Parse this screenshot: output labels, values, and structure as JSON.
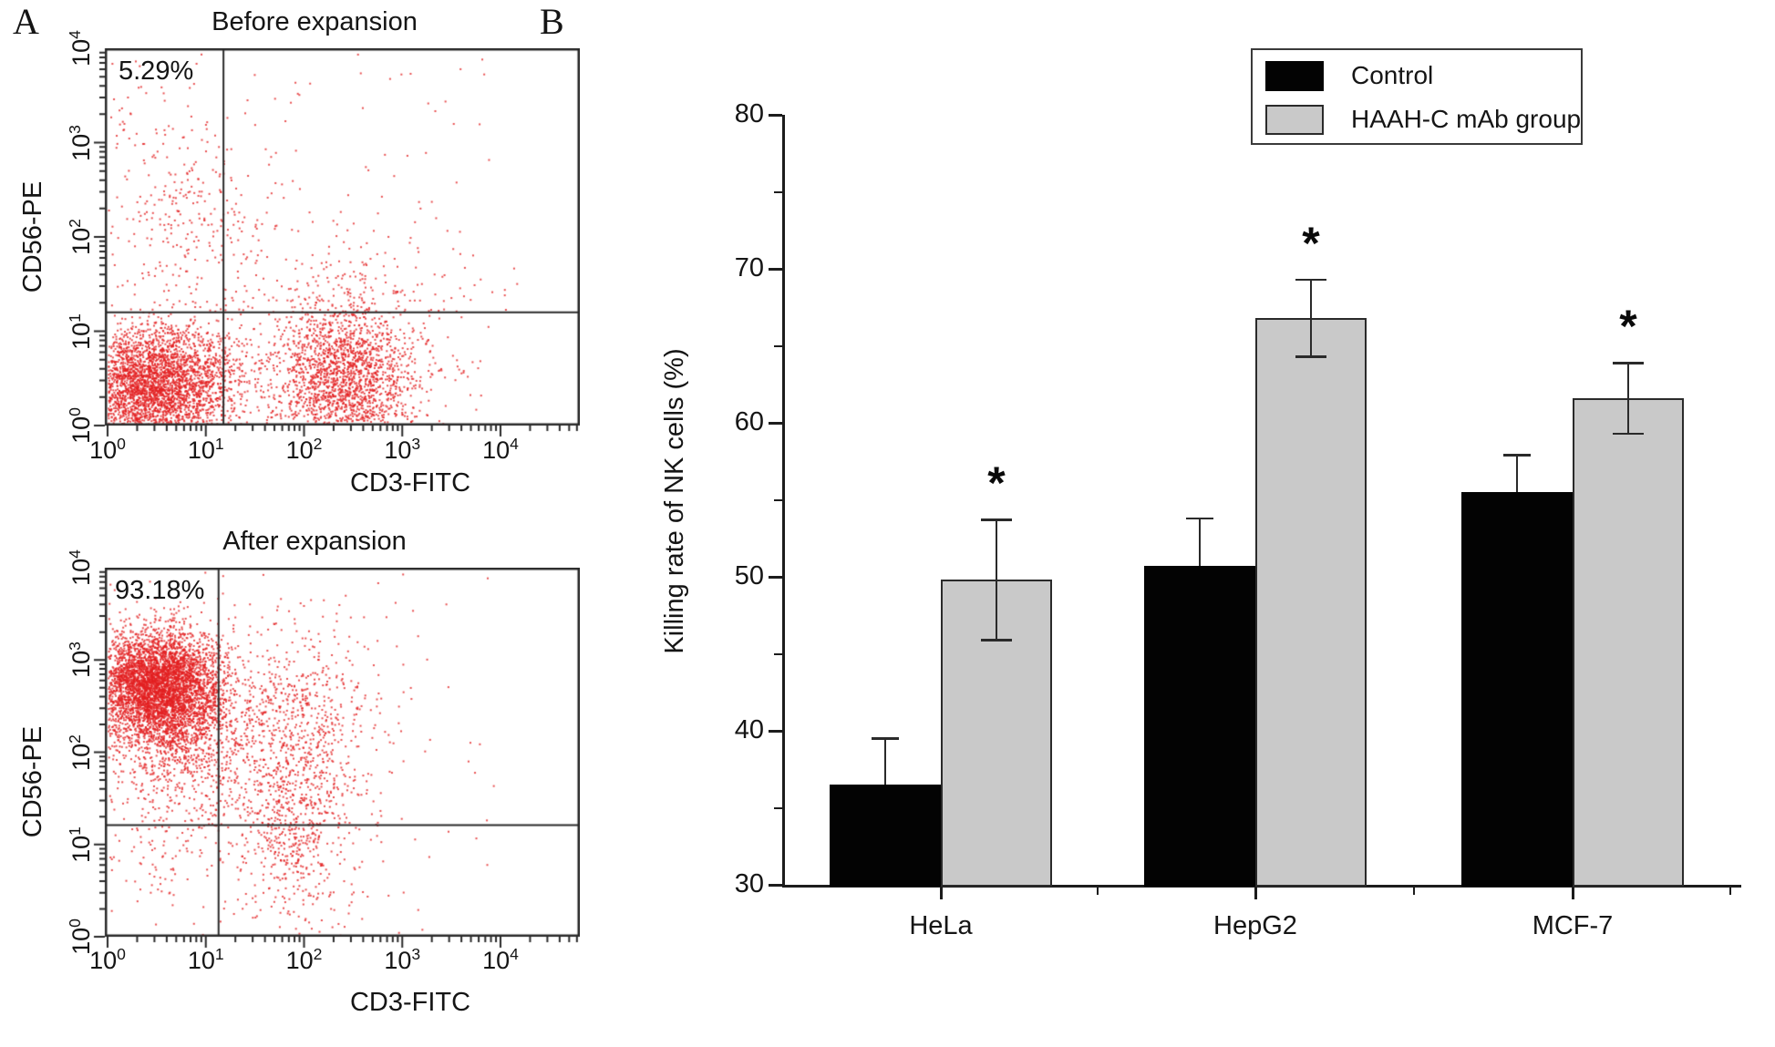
{
  "panels": {
    "a": "A",
    "b": "B"
  },
  "chart_data": [
    {
      "type": "scatter",
      "id": "before",
      "title": "Before expansion",
      "xlabel": "CD3-FITC",
      "ylabel": "CD56-PE",
      "xscale": "log",
      "yscale": "log",
      "xlim": [
        1,
        10000
      ],
      "ylim": [
        1,
        10000
      ],
      "tick_base": "10",
      "tick_exponents": [
        0,
        1,
        2,
        3,
        4
      ],
      "annotation": "5.29%",
      "gate": {
        "x": 15,
        "y": 16,
        "x_log": 1.18,
        "y_log": 1.2
      },
      "point_color": "#e32021",
      "seed": 42,
      "clusters": [
        {
          "cx": 0.42,
          "cy": 0.42,
          "sx": 0.33,
          "sy": 0.3,
          "n": 2800
        },
        {
          "cx": 1.0,
          "cy": 0.5,
          "sx": 0.3,
          "sy": 0.32,
          "n": 550
        },
        {
          "cx": 2.42,
          "cy": 0.5,
          "sx": 0.35,
          "sy": 0.38,
          "n": 1700
        },
        {
          "cx": 2.45,
          "cy": 0.8,
          "sx": 0.55,
          "sy": 0.5,
          "n": 300
        },
        {
          "cx": 0.85,
          "cy": 2.15,
          "sx": 0.45,
          "sy": 0.55,
          "n": 270
        },
        {
          "cx": 0.2,
          "cy": 3.3,
          "sx": 0.28,
          "sy": 0.35,
          "n": 35
        },
        {
          "cx": 2.6,
          "cy": 1.45,
          "sx": 0.65,
          "sy": 0.4,
          "n": 130
        },
        {
          "uniform": true,
          "n": 140
        }
      ]
    },
    {
      "type": "scatter",
      "id": "after",
      "title": "After expansion",
      "xlabel": "CD3-FITC",
      "ylabel": "CD56-PE",
      "xscale": "log",
      "yscale": "log",
      "xlim": [
        1,
        10000
      ],
      "ylim": [
        1,
        10000
      ],
      "tick_base": "10",
      "tick_exponents": [
        0,
        1,
        2,
        3,
        4
      ],
      "annotation": "93.18%",
      "gate": {
        "x": 13,
        "y": 16,
        "x_log": 1.13,
        "y_log": 1.21
      },
      "point_color": "#e32021",
      "seed": 1337,
      "clusters": [
        {
          "cx": 0.52,
          "cy": 2.72,
          "sx": 0.32,
          "sy": 0.3,
          "n": 4500
        },
        {
          "cx": 0.78,
          "cy": 2.25,
          "sx": 0.4,
          "sy": 0.4,
          "n": 800
        },
        {
          "cx": 0.85,
          "cy": 1.7,
          "sx": 0.45,
          "sy": 0.42,
          "n": 260
        },
        {
          "cx": 1.9,
          "cy": 1.3,
          "sx": 0.3,
          "sy": 0.6,
          "n": 700
        },
        {
          "cx": 1.95,
          "cy": 2.4,
          "sx": 0.35,
          "sy": 0.5,
          "n": 400
        },
        {
          "cx": 0.7,
          "cy": 0.85,
          "sx": 0.45,
          "sy": 0.3,
          "n": 80
        },
        {
          "cx": 2.5,
          "cy": 2.3,
          "sx": 0.5,
          "sy": 0.5,
          "n": 60
        },
        {
          "uniform": true,
          "n": 120
        }
      ]
    },
    {
      "type": "bar",
      "categories": [
        "HeLa",
        "HepG2",
        "MCF-7"
      ],
      "series": [
        {
          "name": "Control",
          "color": "#030303",
          "values": [
            36.5,
            50.7,
            55.5
          ],
          "errors": [
            3.0,
            3.1,
            2.4
          ]
        },
        {
          "name": "HAAH-C mAb group",
          "color": "#c9c9c9",
          "values": [
            49.8,
            66.8,
            61.6
          ],
          "errors": [
            3.9,
            2.5,
            2.3
          ]
        }
      ],
      "ylabel": "Killing rate of NK cells (%)",
      "ylim": [
        30,
        80
      ],
      "y_ticks": [
        30,
        40,
        50,
        60,
        70,
        80
      ],
      "y_minor_ticks": [
        35,
        45,
        55,
        65,
        75
      ],
      "sig_marker": "*",
      "significant_series": "HAAH-C mAb group",
      "significant": [
        true,
        true,
        true
      ],
      "legend_position": "top-right",
      "grid": false
    }
  ]
}
